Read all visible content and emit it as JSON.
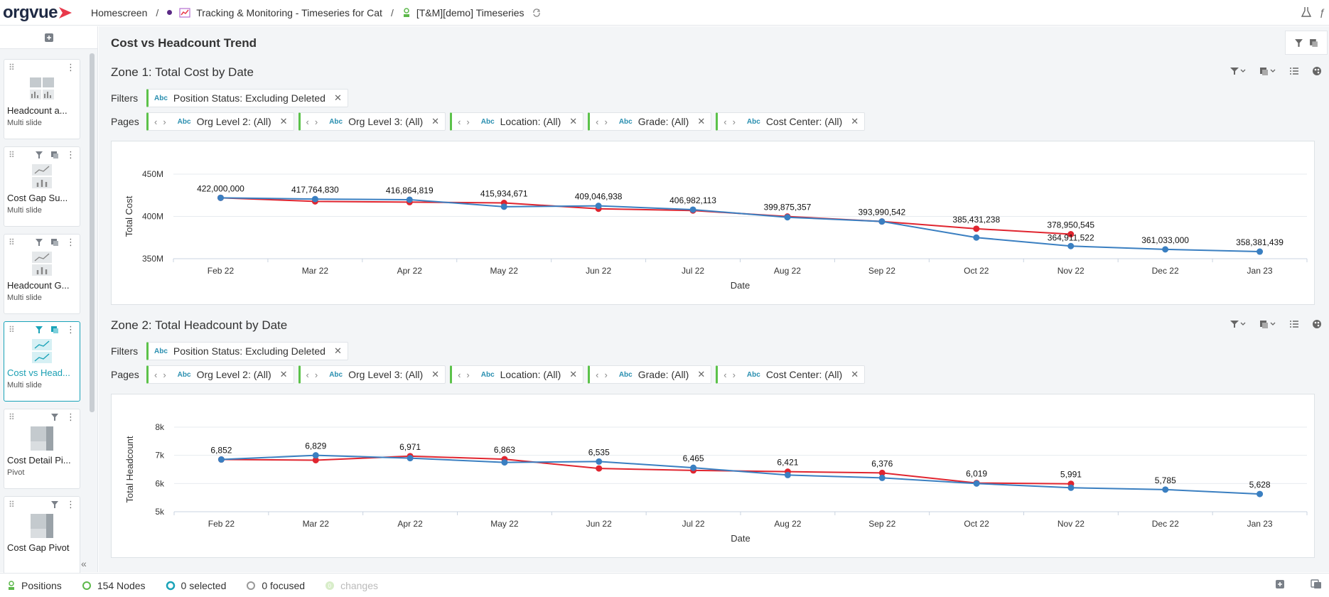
{
  "app": {
    "logo": "orgvue",
    "accent": "#e8394b"
  },
  "breadcrumb": {
    "home": "Homescreen",
    "dataset": "Tracking & Monitoring - Timeseries for Cat",
    "view": "[T&M][demo] Timeseries"
  },
  "sidebar": {
    "slides": [
      {
        "title": "Headcount a...",
        "type": "Multi slide",
        "thumb": "grid-chart-icon",
        "active": false,
        "filter": false
      },
      {
        "title": "Cost Gap Su...",
        "type": "Multi slide",
        "thumb": "line-bar-icon",
        "active": false,
        "filter": true
      },
      {
        "title": "Headcount G...",
        "type": "Multi slide",
        "thumb": "line-bar-icon",
        "active": false,
        "filter": true
      },
      {
        "title": "Cost vs Head...",
        "type": "Multi slide",
        "thumb": "line-line-icon",
        "active": true,
        "filter": true
      },
      {
        "title": "Cost Detail Pi...",
        "type": "Pivot",
        "thumb": "pivot-icon",
        "active": false,
        "filter": true
      },
      {
        "title": "Cost Gap Pivot",
        "type": "",
        "thumb": "pivot-icon",
        "active": false,
        "filter": true
      }
    ]
  },
  "page": {
    "title": "Cost vs Headcount Trend"
  },
  "zones": [
    {
      "title": "Zone 1: Total Cost by Date",
      "filters_label": "Filters",
      "pages_label": "Pages",
      "filters": [
        {
          "type": "Abc",
          "label": "Position Status:",
          "value": "Excluding Deleted"
        }
      ],
      "pages": [
        {
          "type": "Abc",
          "label": "Org Level 2:",
          "value": "(All)"
        },
        {
          "type": "Abc",
          "label": "Org Level 3:",
          "value": "(All)"
        },
        {
          "type": "Abc",
          "label": "Location:",
          "value": "(All)"
        },
        {
          "type": "Abc",
          "label": "Grade:",
          "value": "(All)"
        },
        {
          "type": "Abc",
          "label": "Cost Center:",
          "value": "(All)"
        }
      ]
    },
    {
      "title": "Zone 2: Total Headcount by Date",
      "filters_label": "Filters",
      "pages_label": "Pages",
      "filters": [
        {
          "type": "Abc",
          "label": "Position Status:",
          "value": "Excluding Deleted"
        }
      ],
      "pages": [
        {
          "type": "Abc",
          "label": "Org Level 2:",
          "value": "(All)"
        },
        {
          "type": "Abc",
          "label": "Org Level 3:",
          "value": "(All)"
        },
        {
          "type": "Abc",
          "label": "Location:",
          "value": "(All)"
        },
        {
          "type": "Abc",
          "label": "Grade:",
          "value": "(All)"
        },
        {
          "type": "Abc",
          "label": "Cost Center:",
          "value": "(All)"
        }
      ]
    }
  ],
  "chart_data": [
    {
      "type": "line",
      "xlabel": "Date",
      "ylabel": "Total Cost",
      "categories": [
        "Feb 22",
        "Mar 22",
        "Apr 22",
        "May 22",
        "Jun 22",
        "Jul 22",
        "Aug 22",
        "Sep 22",
        "Oct 22",
        "Nov 22",
        "Dec 22",
        "Jan 23"
      ],
      "ylim": [
        350000000,
        450000000
      ],
      "yticks": [
        350000000,
        400000000,
        450000000
      ],
      "ytick_labels": [
        "350M",
        "400M",
        "450M"
      ],
      "grid": true,
      "series": [
        {
          "color": "#e0252f",
          "values": [
            422000000,
            417764830,
            416864819,
            415934671,
            409046938,
            406982113,
            399875357,
            393990542,
            385431238,
            378950545,
            null,
            null
          ]
        },
        {
          "color": "#3a7fc1",
          "values": [
            422000000,
            420500000,
            419800000,
            411500000,
            412500000,
            408000000,
            399000000,
            393990542,
            375000000,
            364911522,
            361033000,
            358381439
          ]
        }
      ],
      "data_labels": [
        "422,000,000",
        "417,764,830",
        "416,864,819",
        "415,934,671",
        "409,046,938",
        "406,982,113",
        "399,875,357",
        "393,990,542",
        "385,431,238",
        "378,950,545",
        "361,033,000",
        "358,381,439"
      ],
      "extra_label": "364,911,522"
    },
    {
      "type": "line",
      "xlabel": "Date",
      "ylabel": "Total Headcount",
      "categories": [
        "Feb 22",
        "Mar 22",
        "Apr 22",
        "May 22",
        "Jun 22",
        "Jul 22",
        "Aug 22",
        "Sep 22",
        "Oct 22",
        "Nov 22",
        "Dec 22",
        "Jan 23"
      ],
      "ylim": [
        5000,
        8000
      ],
      "yticks": [
        5000,
        6000,
        7000,
        8000
      ],
      "ytick_labels": [
        "5k",
        "6k",
        "7k",
        "8k"
      ],
      "grid": true,
      "series": [
        {
          "color": "#e0252f",
          "values": [
            6852,
            6829,
            6971,
            6863,
            6535,
            6465,
            6421,
            6376,
            6019,
            5991,
            null,
            null
          ]
        },
        {
          "color": "#3a7fc1",
          "values": [
            6852,
            7000,
            6900,
            6750,
            6780,
            6560,
            6300,
            6200,
            6000,
            5850,
            5785,
            5628
          ]
        }
      ],
      "data_labels": [
        "6,852",
        "6,829",
        "6,971",
        "6,863",
        "6,535",
        "6,465",
        "6,421",
        "6,376",
        "6,019",
        "5,991",
        "5,785",
        "5,628"
      ]
    }
  ],
  "statusbar": {
    "dataset": "Positions",
    "nodes": "154 Nodes",
    "selected": "0 selected",
    "focused": "0 focused",
    "changes": "changes"
  }
}
